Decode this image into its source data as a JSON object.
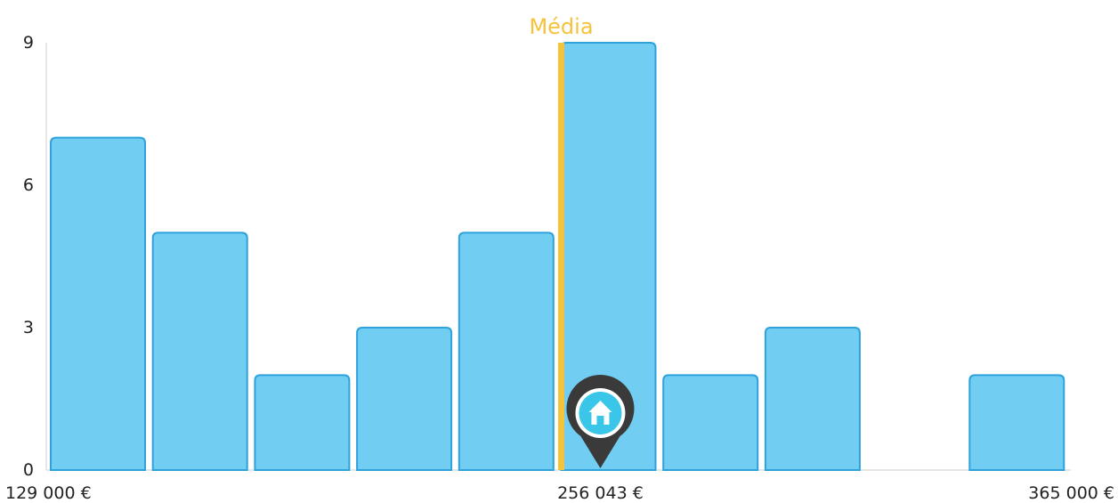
{
  "chart_data": {
    "type": "bar",
    "title": "",
    "xlabel": "",
    "ylabel": "",
    "ylim": [
      0,
      9
    ],
    "yticks": [
      "0",
      "3",
      "6",
      "9"
    ],
    "values": [
      7,
      5,
      2,
      3,
      5,
      9,
      2,
      3,
      0,
      2
    ],
    "x_range_labels": {
      "min": "129 000 €",
      "max": "365 000 €"
    },
    "x_min": 129000,
    "x_max": 365000,
    "mean": {
      "label": "Média",
      "x": 247000
    },
    "property_marker": {
      "label": "256 043 €",
      "x": 256043,
      "icon": "house-pin-icon"
    },
    "legend": "none",
    "grid": false
  },
  "colors": {
    "bar_fill": "#72cdf2",
    "bar_stroke": "#2fa2dc",
    "mean_line": "#f5c33b",
    "axis": "#e6e6e6",
    "text": "#222222",
    "pin_body": "#3a3a3a",
    "pin_inner": "#39c6e8"
  }
}
